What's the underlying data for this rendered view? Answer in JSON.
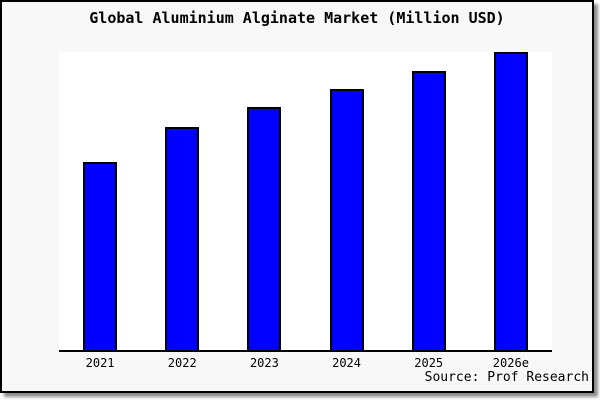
{
  "title": "Global Aluminium Alginate Market (Million USD)",
  "source": "Source: Prof Research",
  "colors": {
    "bar_fill": "#0000ff",
    "bar_border": "#000000",
    "frame_background": "#f8f8f8",
    "plot_background": "#ffffff",
    "frame_border": "#000000",
    "text": "#000000"
  },
  "chart_data": {
    "type": "bar",
    "title": "Global Aluminium Alginate Market (Million USD)",
    "categories": [
      "2021",
      "2022",
      "2023",
      "2024",
      "2025",
      "2026e"
    ],
    "values": [
      63,
      75,
      81.5,
      87.5,
      93.5,
      100
    ],
    "xlabel": "",
    "ylabel": "",
    "ylim": [
      0,
      100
    ],
    "y_axis_labels_visible": false,
    "gridlines": false,
    "legend": false,
    "value_scale_note": "no y-axis scale shown in image; values are bar heights normalized to tallest bar (2026e) = 100"
  }
}
